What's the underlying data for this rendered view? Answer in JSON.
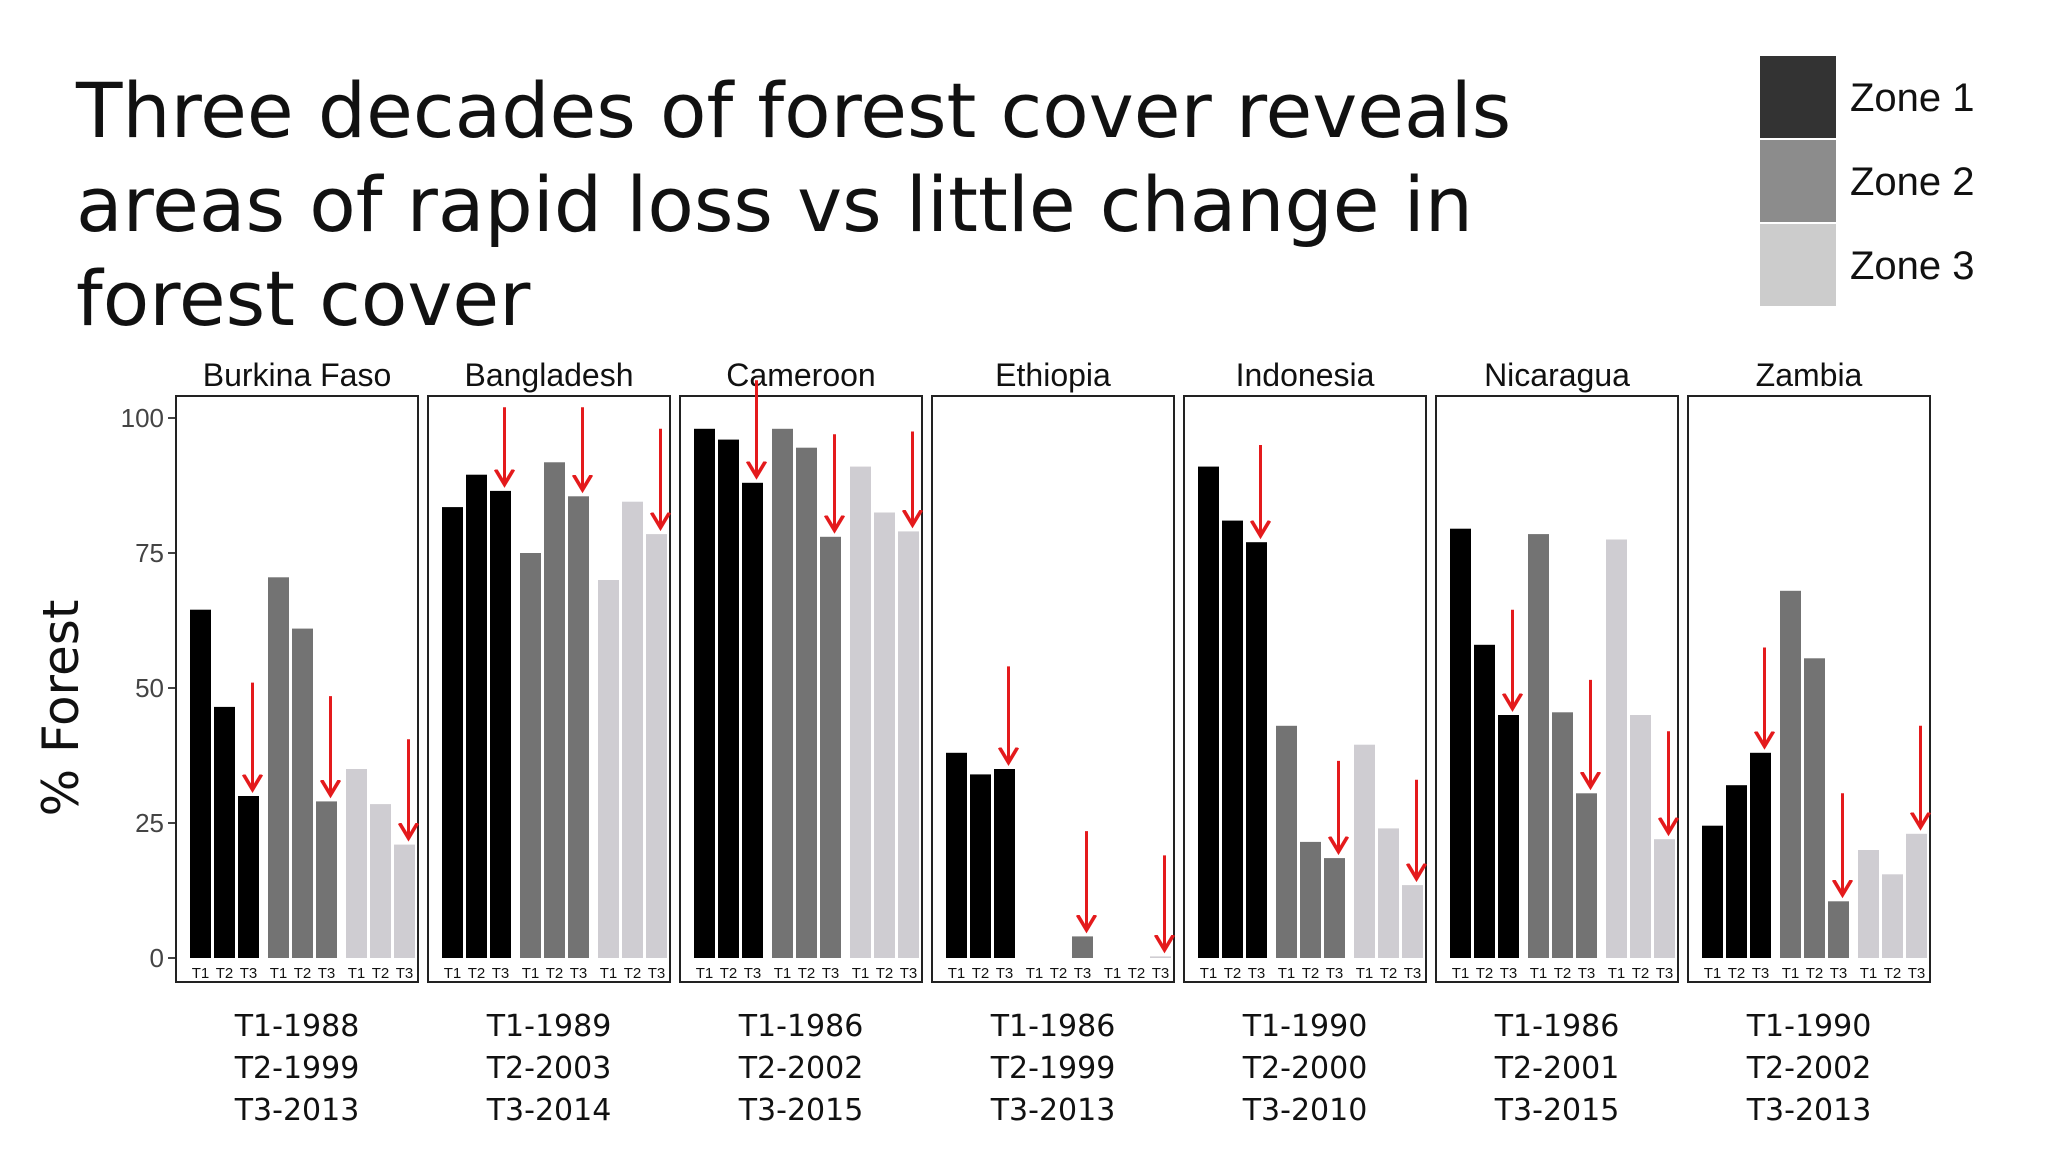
{
  "title": "Three decades of forest cover reveals areas of rapid loss vs little change in forest cover",
  "chart_data": {
    "type": "bar",
    "ylabel": "% Forest",
    "ylim": [
      0,
      100
    ],
    "yticks": [
      0,
      25,
      50,
      75,
      100
    ],
    "legend": {
      "placement": "top-right",
      "entries": [
        {
          "name": "Zone 1",
          "color": "#333333"
        },
        {
          "name": "Zone 2",
          "color": "#8c8c8c"
        },
        {
          "name": "Zone 3",
          "color": "#cccccc"
        }
      ]
    },
    "series_colors": [
      "#000000",
      "#737373",
      "#cfcdd2"
    ],
    "arrow_color": "#e41a1c",
    "bar_labels": [
      "T1",
      "T2",
      "T3"
    ],
    "panels": [
      {
        "name": "Burkina Faso",
        "periods": [
          "T1-1988",
          "T2-1999",
          "T3-2013"
        ],
        "zones": [
          [
            64.5,
            46.5,
            30
          ],
          [
            70.5,
            61,
            29
          ],
          [
            35,
            28.5,
            21
          ]
        ]
      },
      {
        "name": "Bangladesh",
        "periods": [
          "T1-1989",
          "T2-2003",
          "T3-2014"
        ],
        "zones": [
          [
            83.5,
            89.5,
            86.5
          ],
          [
            75,
            91.8,
            85.5
          ],
          [
            70,
            84.5,
            78.5
          ]
        ]
      },
      {
        "name": "Cameroon",
        "periods": [
          "T1-1986",
          "T2-2002",
          "T3-2015"
        ],
        "zones": [
          [
            98,
            96,
            88
          ],
          [
            98,
            94.5,
            78
          ],
          [
            91,
            82.5,
            79
          ]
        ]
      },
      {
        "name": "Ethiopia",
        "periods": [
          "T1-1986",
          "T2-1999",
          "T3-2013"
        ],
        "zones": [
          [
            38,
            34,
            35
          ],
          [
            0,
            0,
            4
          ],
          [
            0,
            0,
            0.3
          ]
        ]
      },
      {
        "name": "Indonesia",
        "periods": [
          "T1-1990",
          "T2-2000",
          "T3-2010"
        ],
        "zones": [
          [
            91,
            81,
            77
          ],
          [
            43,
            21.5,
            18.5
          ],
          [
            39.5,
            24,
            13.5
          ]
        ]
      },
      {
        "name": "Nicaragua",
        "periods": [
          "T1-1986",
          "T2-2001",
          "T3-2015"
        ],
        "zones": [
          [
            79.5,
            58,
            45
          ],
          [
            78.5,
            45.5,
            30.5
          ],
          [
            77.5,
            45,
            22
          ]
        ]
      },
      {
        "name": "Zambia",
        "periods": [
          "T1-1990",
          "T2-2002",
          "T3-2013"
        ],
        "zones": [
          [
            24.5,
            32,
            38
          ],
          [
            68,
            55.5,
            10.5
          ],
          [
            20,
            15.5,
            23
          ]
        ]
      }
    ],
    "arrows": [
      {
        "panel": 0,
        "zone": 0,
        "from": 51
      },
      {
        "panel": 0,
        "zone": 1,
        "from": 48.5
      },
      {
        "panel": 0,
        "zone": 2,
        "from": 40.5
      },
      {
        "panel": 1,
        "zone": 0,
        "from": 102
      },
      {
        "panel": 1,
        "zone": 1,
        "from": 102
      },
      {
        "panel": 1,
        "zone": 2,
        "from": 98
      },
      {
        "panel": 2,
        "zone": 0,
        "from": 107
      },
      {
        "panel": 2,
        "zone": 1,
        "from": 97
      },
      {
        "panel": 2,
        "zone": 2,
        "from": 97.5
      },
      {
        "panel": 3,
        "zone": 0,
        "from": 54
      },
      {
        "panel": 3,
        "zone": 1,
        "from": 23.5
      },
      {
        "panel": 3,
        "zone": 2,
        "from": 19
      },
      {
        "panel": 4,
        "zone": 0,
        "from": 95
      },
      {
        "panel": 4,
        "zone": 1,
        "from": 36.5
      },
      {
        "panel": 4,
        "zone": 2,
        "from": 33
      },
      {
        "panel": 5,
        "zone": 0,
        "from": 64.5
      },
      {
        "panel": 5,
        "zone": 1,
        "from": 51.5
      },
      {
        "panel": 5,
        "zone": 2,
        "from": 42
      },
      {
        "panel": 6,
        "zone": 0,
        "from": 57.5
      },
      {
        "panel": 6,
        "zone": 1,
        "from": 30.5
      },
      {
        "panel": 6,
        "zone": 2,
        "from": 43
      }
    ]
  }
}
